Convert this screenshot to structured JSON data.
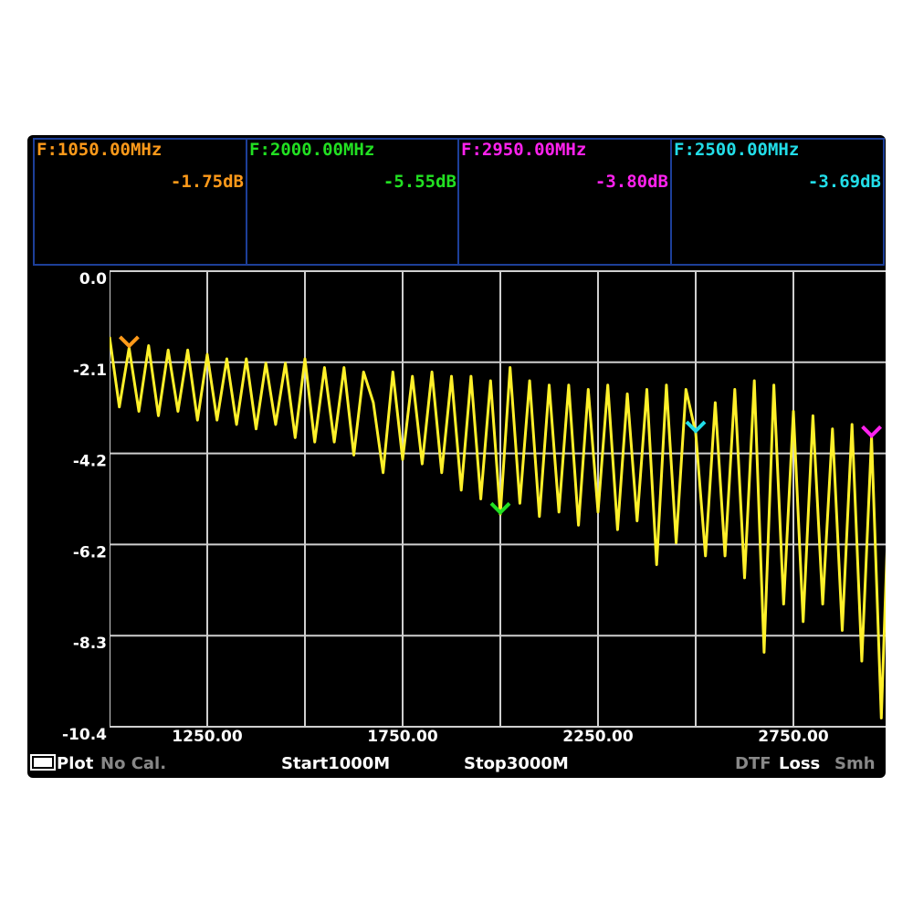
{
  "markers": [
    {
      "label": "F:1050.00MHz",
      "freq": 1050,
      "value": -1.75,
      "value_label": "-1.75dB",
      "color": "#ff9a1a"
    },
    {
      "label": "F:2000.00MHz",
      "freq": 2000,
      "value": -5.55,
      "value_label": "-5.55dB",
      "color": "#22e022"
    },
    {
      "label": "F:2950.00MHz",
      "freq": 2950,
      "value": -3.8,
      "value_label": "-3.80dB",
      "color": "#ff22ee"
    },
    {
      "label": "F:2500.00MHz",
      "freq": 2500,
      "value": -3.69,
      "value_label": "-3.69dB",
      "color": "#22dde8"
    }
  ],
  "chart_data": {
    "type": "line",
    "color": "#fff02a",
    "grid": true,
    "x": [
      1000,
      1025,
      1050,
      1075,
      1100,
      1125,
      1150,
      1175,
      1200,
      1225,
      1250,
      1275,
      1300,
      1325,
      1350,
      1375,
      1400,
      1425,
      1450,
      1475,
      1500,
      1525,
      1550,
      1575,
      1600,
      1625,
      1650,
      1675,
      1700,
      1725,
      1750,
      1775,
      1800,
      1825,
      1850,
      1875,
      1900,
      1925,
      1950,
      1975,
      2000,
      2025,
      2050,
      2075,
      2100,
      2125,
      2150,
      2175,
      2200,
      2225,
      2250,
      2275,
      2300,
      2325,
      2350,
      2375,
      2400,
      2425,
      2450,
      2475,
      2500,
      2525,
      2550,
      2575,
      2600,
      2625,
      2650,
      2675,
      2700,
      2725,
      2750,
      2775,
      2800,
      2825,
      2850,
      2875,
      2900,
      2925,
      2950,
      2975,
      3000
    ],
    "values": [
      -1.5,
      -3.1,
      -1.75,
      -3.2,
      -1.7,
      -3.3,
      -1.8,
      -3.2,
      -1.8,
      -3.4,
      -1.9,
      -3.4,
      -2.0,
      -3.5,
      -2.0,
      -3.6,
      -2.1,
      -3.5,
      -2.1,
      -3.8,
      -2.0,
      -3.9,
      -2.2,
      -3.9,
      -2.2,
      -4.2,
      -2.3,
      -3.0,
      -4.6,
      -2.3,
      -4.3,
      -2.4,
      -4.4,
      -2.3,
      -4.6,
      -2.4,
      -5.0,
      -2.4,
      -5.2,
      -2.5,
      -5.55,
      -2.2,
      -5.3,
      -2.5,
      -5.6,
      -2.6,
      -5.5,
      -2.6,
      -5.8,
      -2.7,
      -5.5,
      -2.6,
      -5.9,
      -2.8,
      -5.7,
      -2.7,
      -6.7,
      -2.6,
      -6.2,
      -2.7,
      -3.69,
      -6.5,
      -3.0,
      -6.5,
      -2.7,
      -7.0,
      -2.5,
      -8.7,
      -2.6,
      -7.6,
      -3.2,
      -8.0,
      -3.3,
      -7.6,
      -3.6,
      -8.2,
      -3.5,
      -8.9,
      -3.8,
      -10.2,
      -3.6
    ],
    "xlim": [
      1000,
      3000
    ],
    "ylim": [
      -10.4,
      0
    ],
    "yticks": [
      {
        "value": 0,
        "label": "0.0"
      },
      {
        "value": -2.08,
        "label": "-2.1"
      },
      {
        "value": -4.16,
        "label": "-4.2"
      },
      {
        "value": -6.24,
        "label": "-6.2"
      },
      {
        "value": -8.32,
        "label": "-8.3"
      },
      -10.4
    ],
    "xticks": [
      {
        "value": 1250,
        "label": "1250.00"
      },
      {
        "value": 1750,
        "label": "1750.00"
      },
      {
        "value": 2250,
        "label": "2250.00"
      },
      {
        "value": 2750,
        "label": "2750.00"
      }
    ],
    "xgrid": [
      1500,
      2000,
      2500
    ]
  },
  "footer": {
    "mode": "Plot",
    "cal": "No Cal.",
    "start": "Start1000M",
    "stop": "Stop3000M",
    "dtf": "DTF",
    "loss": "Loss",
    "smith": "Smh"
  }
}
